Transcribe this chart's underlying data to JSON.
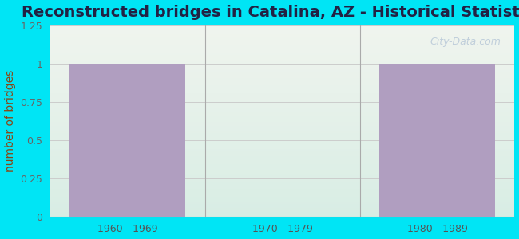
{
  "title": "Reconstructed bridges in Catalina, AZ - Historical Statistics",
  "categories": [
    "1960 - 1969",
    "1970 - 1979",
    "1980 - 1989"
  ],
  "values": [
    1,
    0,
    1
  ],
  "bar_color": "#b09ec0",
  "ylabel": "number of bridges",
  "ylim": [
    0,
    1.25
  ],
  "yticks": [
    0,
    0.25,
    0.5,
    0.75,
    1.0,
    1.25
  ],
  "background_outer": "#00e5f5",
  "background_plot_top": "#f0f4ee",
  "background_plot_bottom": "#d8ede4",
  "title_color": "#222244",
  "ylabel_color": "#8b4513",
  "tick_label_color": "#666666",
  "xtick_label_color": "#555555",
  "watermark_text": "City-Data.com",
  "title_fontsize": 14,
  "ylabel_fontsize": 10,
  "tick_fontsize": 9
}
